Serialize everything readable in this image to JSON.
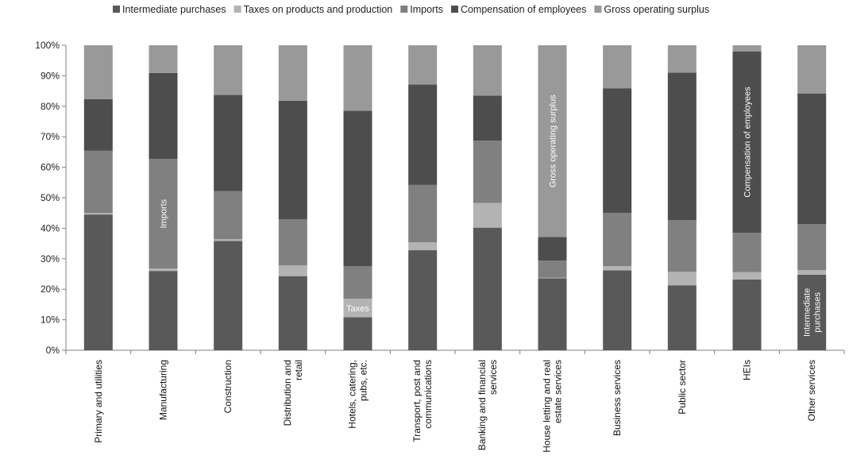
{
  "chart_data": {
    "type": "bar",
    "stacked": true,
    "percent": true,
    "title": "",
    "xlabel": "",
    "ylabel": "",
    "ylim": [
      0,
      100
    ],
    "yticks": [
      0,
      10,
      20,
      30,
      40,
      50,
      60,
      70,
      80,
      90,
      100
    ],
    "yunit": "%",
    "grid": false,
    "legend_position": "top",
    "categories": [
      "Primary and utilities",
      "Manufacturing",
      "Construction",
      "Distribution and retail",
      "Hotels, catering, pubs, etc.",
      "Transport, post and communications",
      "Banking and financial services",
      "House letting and real estate services",
      "Business services",
      "Public sector",
      "HEIs",
      "Other services"
    ],
    "series": [
      {
        "name": "Intermediate purchases",
        "color": "#595959",
        "values": [
          44.5,
          26.0,
          35.8,
          24.3,
          10.8,
          32.8,
          40.2,
          23.6,
          26.2,
          21.3,
          23.2,
          24.8
        ]
      },
      {
        "name": "Taxes on products and production",
        "color": "#b3b3b3",
        "values": [
          0.5,
          0.8,
          0.6,
          3.5,
          6.1,
          2.6,
          8.1,
          0.2,
          1.4,
          4.4,
          2.4,
          1.5
        ]
      },
      {
        "name": "Imports",
        "color": "#808080",
        "values": [
          20.4,
          35.9,
          15.8,
          15.1,
          10.7,
          18.8,
          20.4,
          5.6,
          17.4,
          17.0,
          12.9,
          15.1
        ]
      },
      {
        "name": "Compensation of employees",
        "color": "#4d4d4d",
        "values": [
          16.9,
          28.2,
          31.5,
          38.9,
          50.9,
          32.9,
          14.8,
          7.7,
          40.9,
          48.3,
          59.5,
          42.8
        ]
      },
      {
        "name": "Gross  operating surplus",
        "color": "#999999",
        "values": [
          17.7,
          9.1,
          16.3,
          18.2,
          21.5,
          12.9,
          16.5,
          62.9,
          14.1,
          9.0,
          2.0,
          15.8
        ]
      }
    ],
    "annotations": [
      {
        "category_index": 1,
        "series_index": 2,
        "text": "Imports",
        "rotate": true
      },
      {
        "category_index": 4,
        "series_index": 1,
        "text": "Taxes",
        "rotate": false
      },
      {
        "category_index": 7,
        "series_index": 4,
        "text": "Gross  operating surplus",
        "rotate": true
      },
      {
        "category_index": 10,
        "series_index": 3,
        "text": "Compensation of employees",
        "rotate": true
      },
      {
        "category_index": 11,
        "series_index": 0,
        "text": [
          "Intermediate",
          "purchases"
        ],
        "rotate": true
      }
    ]
  }
}
